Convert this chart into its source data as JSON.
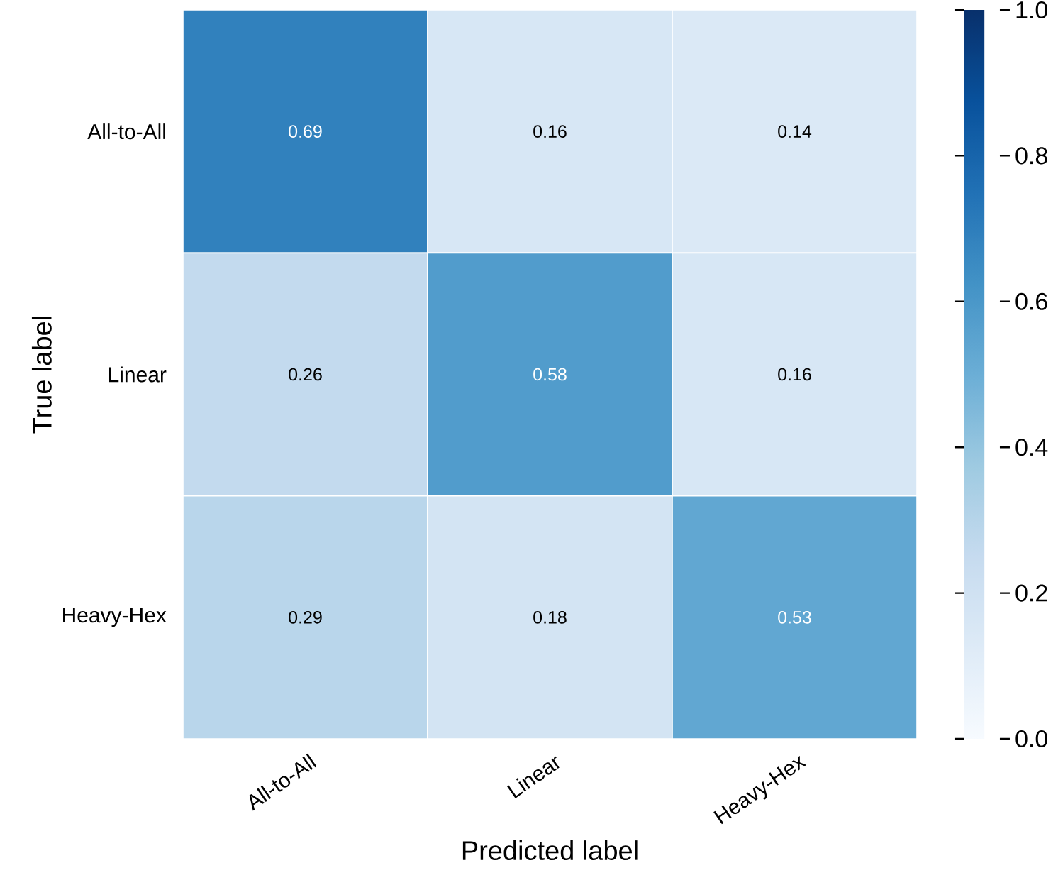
{
  "chart_data": {
    "type": "heatmap",
    "xlabel": "Predicted label",
    "ylabel": "True label",
    "categories": [
      "All-to-All",
      "Linear",
      "Heavy-Hex"
    ],
    "y_categories": [
      "All-to-All",
      "Linear",
      "Heavy-Hex"
    ],
    "cells": [
      [
        0.69,
        0.16,
        0.14
      ],
      [
        0.26,
        0.58,
        0.16
      ],
      [
        0.29,
        0.18,
        0.53
      ]
    ],
    "data_labels": true,
    "clim": [
      0,
      1
    ],
    "cticks": [
      {
        "value": 0,
        "label": "0.0"
      },
      0.2,
      0.4,
      0.6,
      0.8,
      {
        "value": 1,
        "label": "1.0"
      }
    ]
  }
}
